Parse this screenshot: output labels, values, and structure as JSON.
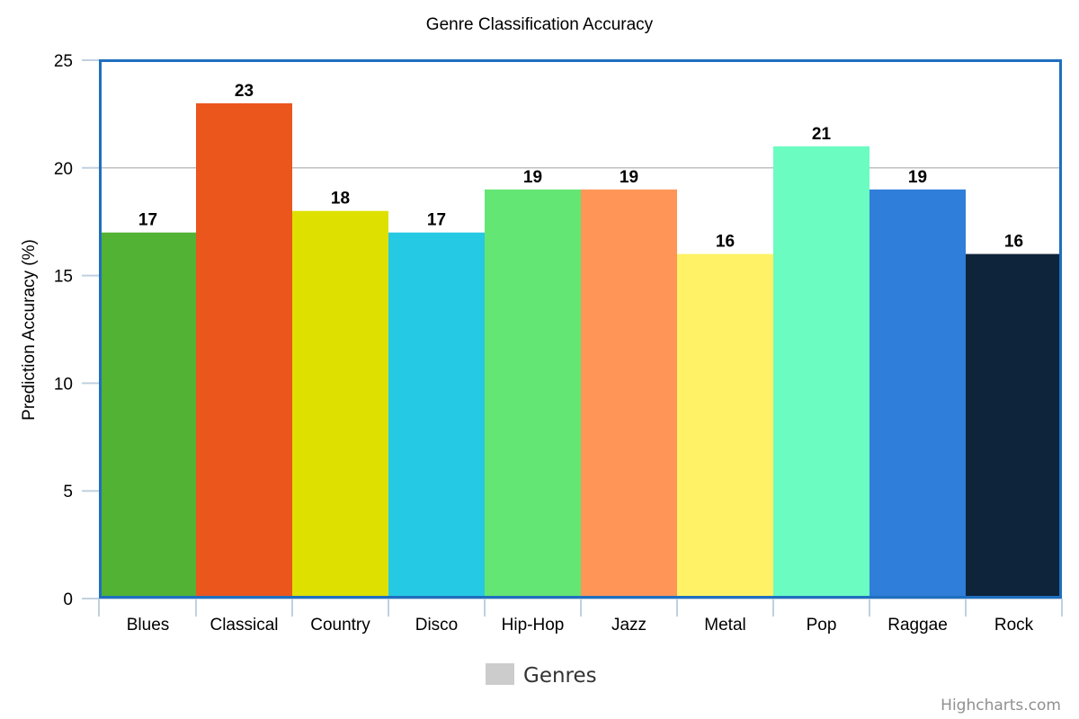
{
  "chart_data": {
    "type": "bar",
    "title": "Genre Classification Accuracy",
    "xlabel": "",
    "ylabel": "Prediction Accuracy (%)",
    "ylim": [
      0,
      25
    ],
    "yticks": [
      0,
      5,
      10,
      15,
      20,
      25
    ],
    "grid": true,
    "categories": [
      "Blues",
      "Classical",
      "Country",
      "Disco",
      "Hip-Hop",
      "Jazz",
      "Metal",
      "Pop",
      "Raggae",
      "Rock"
    ],
    "series": [
      {
        "name": "Genres",
        "values": [
          17,
          23,
          18,
          17,
          19,
          19,
          16,
          21,
          19,
          16
        ],
        "colors": [
          "#52b234",
          "#eb561d",
          "#dee000",
          "#26c9e3",
          "#63e673",
          "#ff9657",
          "#fff266",
          "#6bfcc1",
          "#2f7ed9",
          "#0e243a"
        ]
      }
    ],
    "legend": {
      "position": "bottom-center",
      "label": "Genres",
      "color": "#cccccc"
    },
    "credit": "Highcharts.com",
    "plot_border_color": "#1f6fbf"
  }
}
